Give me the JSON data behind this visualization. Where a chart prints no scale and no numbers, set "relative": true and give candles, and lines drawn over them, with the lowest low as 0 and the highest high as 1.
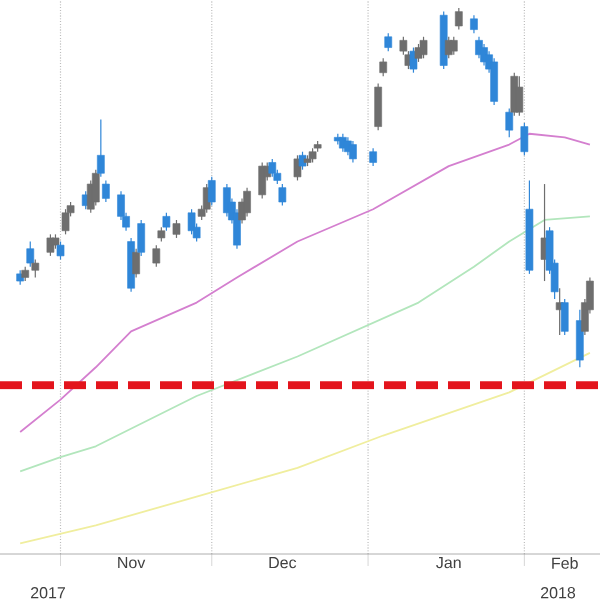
{
  "chart_data": {
    "type": "candlestick",
    "relative": true,
    "grid": true,
    "xlim": [
      "2017-10-20",
      "2018-02-16"
    ],
    "xticks": [
      {
        "value": "2017-11-01",
        "label": null
      },
      {
        "value": "2017-12-01",
        "label": null
      },
      {
        "value": "2018-01-01",
        "label": null
      },
      {
        "value": "2018-02-01",
        "label": null
      },
      {
        "value": "2017-11-15",
        "label": "Nov"
      },
      {
        "value": "2017-12-15",
        "label": "Dec"
      },
      {
        "value": "2018-01-17",
        "label": "Jan"
      },
      {
        "value": "2018-02-09",
        "label": "Feb"
      }
    ],
    "annotations": [
      "2017",
      "2018"
    ],
    "x": [
      "2017-10-24",
      "2017-10-25",
      "2017-10-26",
      "2017-10-27",
      "2017-10-30",
      "2017-10-31",
      "2017-11-01",
      "2017-11-02",
      "2017-11-03",
      "2017-11-06",
      "2017-11-07",
      "2017-11-08",
      "2017-11-09",
      "2017-11-10",
      "2017-11-13",
      "2017-11-14",
      "2017-11-15",
      "2017-11-16",
      "2017-11-17",
      "2017-11-20",
      "2017-11-21",
      "2017-11-22",
      "2017-11-24",
      "2017-11-27",
      "2017-11-28",
      "2017-11-29",
      "2017-11-30",
      "2017-12-01",
      "2017-12-04",
      "2017-12-05",
      "2017-12-06",
      "2017-12-07",
      "2017-12-08",
      "2017-12-11",
      "2017-12-12",
      "2017-12-13",
      "2017-12-14",
      "2017-12-15",
      "2017-12-18",
      "2017-12-19",
      "2017-12-20",
      "2017-12-21",
      "2017-12-22",
      "2017-12-26",
      "2017-12-27",
      "2017-12-28",
      "2017-12-29",
      "2018-01-02",
      "2018-01-03",
      "2018-01-04",
      "2018-01-05",
      "2018-01-08",
      "2018-01-09",
      "2018-01-10",
      "2018-01-11",
      "2018-01-12",
      "2018-01-16",
      "2018-01-17",
      "2018-01-18",
      "2018-01-19",
      "2018-01-22",
      "2018-01-23",
      "2018-01-24",
      "2018-01-25",
      "2018-01-26",
      "2018-01-29",
      "2018-01-30",
      "2018-01-31",
      "2018-02-01",
      "2018-02-02",
      "2018-02-05",
      "2018-02-06",
      "2018-02-07",
      "2018-02-08",
      "2018-02-09",
      "2018-02-12",
      "2018-02-13",
      "2018-02-14"
    ],
    "ohlc": [
      [
        0.26,
        0.27,
        0.23,
        0.24
      ],
      [
        0.25,
        0.28,
        0.24,
        0.27
      ],
      [
        0.33,
        0.35,
        0.28,
        0.29
      ],
      [
        0.27,
        0.3,
        0.25,
        0.29
      ],
      [
        0.32,
        0.37,
        0.31,
        0.36
      ],
      [
        0.34,
        0.37,
        0.33,
        0.36
      ],
      [
        0.34,
        0.35,
        0.3,
        0.31
      ],
      [
        0.38,
        0.44,
        0.37,
        0.43
      ],
      [
        0.43,
        0.46,
        0.42,
        0.45
      ],
      [
        0.48,
        0.49,
        0.44,
        0.45
      ],
      [
        0.44,
        0.52,
        0.43,
        0.51
      ],
      [
        0.46,
        0.55,
        0.45,
        0.54
      ],
      [
        0.59,
        0.69,
        0.53,
        0.54
      ],
      [
        0.51,
        0.52,
        0.46,
        0.47
      ],
      [
        0.48,
        0.49,
        0.41,
        0.42
      ],
      [
        0.42,
        0.43,
        0.38,
        0.39
      ],
      [
        0.35,
        0.36,
        0.21,
        0.22
      ],
      [
        0.26,
        0.33,
        0.25,
        0.32
      ],
      [
        0.4,
        0.41,
        0.31,
        0.32
      ],
      [
        0.29,
        0.34,
        0.28,
        0.33
      ],
      [
        0.36,
        0.39,
        0.35,
        0.38
      ],
      [
        0.42,
        0.43,
        0.38,
        0.39
      ],
      [
        0.37,
        0.41,
        0.36,
        0.4
      ],
      [
        0.43,
        0.44,
        0.37,
        0.38
      ],
      [
        0.39,
        0.4,
        0.35,
        0.36
      ],
      [
        0.42,
        0.45,
        0.41,
        0.44
      ],
      [
        0.44,
        0.51,
        0.43,
        0.5
      ],
      [
        0.52,
        0.53,
        0.45,
        0.46
      ],
      [
        0.5,
        0.51,
        0.42,
        0.43
      ],
      [
        0.46,
        0.47,
        0.4,
        0.41
      ],
      [
        0.43,
        0.44,
        0.33,
        0.34
      ],
      [
        0.41,
        0.47,
        0.4,
        0.46
      ],
      [
        0.43,
        0.5,
        0.42,
        0.49
      ],
      [
        0.48,
        0.57,
        0.47,
        0.56
      ],
      [
        0.53,
        0.57,
        0.52,
        0.56
      ],
      [
        0.57,
        0.58,
        0.53,
        0.54
      ],
      [
        0.54,
        0.55,
        0.51,
        0.52
      ],
      [
        0.5,
        0.51,
        0.45,
        0.46
      ],
      [
        0.53,
        0.59,
        0.52,
        0.58
      ],
      [
        0.59,
        0.6,
        0.55,
        0.56
      ],
      [
        0.57,
        0.59,
        0.56,
        0.58
      ],
      [
        0.58,
        0.61,
        0.57,
        0.6
      ],
      [
        0.61,
        0.63,
        0.6,
        0.62
      ],
      [
        0.64,
        0.65,
        0.62,
        0.63
      ],
      [
        0.64,
        0.65,
        0.6,
        0.61
      ],
      [
        0.63,
        0.64,
        0.59,
        0.6
      ],
      [
        0.62,
        0.63,
        0.57,
        0.58
      ],
      [
        0.6,
        0.61,
        0.56,
        0.57
      ],
      [
        0.67,
        0.79,
        0.66,
        0.78
      ],
      [
        0.82,
        0.86,
        0.81,
        0.85
      ],
      [
        0.92,
        0.93,
        0.88,
        0.89
      ],
      [
        0.88,
        0.92,
        0.87,
        0.91
      ],
      [
        0.84,
        0.88,
        0.83,
        0.87
      ],
      [
        0.88,
        0.89,
        0.82,
        0.83
      ],
      [
        0.86,
        0.9,
        0.85,
        0.89
      ],
      [
        0.87,
        0.92,
        0.86,
        0.91
      ],
      [
        0.98,
        0.99,
        0.83,
        0.84
      ],
      [
        0.87,
        0.92,
        0.86,
        0.91
      ],
      [
        0.88,
        0.92,
        0.87,
        0.91
      ],
      [
        0.95,
        1.0,
        0.94,
        0.99
      ],
      [
        0.97,
        0.98,
        0.93,
        0.94
      ],
      [
        0.91,
        0.92,
        0.86,
        0.87
      ],
      [
        0.89,
        0.9,
        0.84,
        0.85
      ],
      [
        0.87,
        0.88,
        0.82,
        0.83
      ],
      [
        0.85,
        0.86,
        0.73,
        0.74
      ],
      [
        0.71,
        0.72,
        0.64,
        0.66
      ],
      [
        0.71,
        0.82,
        0.7,
        0.81
      ],
      [
        0.71,
        0.81,
        0.7,
        0.78
      ],
      [
        0.67,
        0.68,
        0.59,
        0.6
      ],
      [
        0.44,
        0.52,
        0.26,
        0.27
      ],
      [
        0.3,
        0.51,
        0.24,
        0.36
      ],
      [
        0.38,
        0.39,
        0.26,
        0.27
      ],
      [
        0.29,
        0.3,
        0.19,
        0.21
      ],
      [
        0.16,
        0.22,
        0.09,
        0.18
      ],
      [
        0.18,
        0.19,
        0.09,
        0.1
      ],
      [
        0.13,
        0.16,
        0.0,
        0.02
      ],
      [
        0.1,
        0.19,
        0.09,
        0.18
      ],
      [
        0.16,
        0.25,
        0.15,
        0.24
      ]
    ],
    "colors": [
      "#2f86d8",
      "#6e6e6e",
      "#2f86d8",
      "#6e6e6e",
      "#6e6e6e",
      "#6e6e6e",
      "#2f86d8",
      "#6e6e6e",
      "#6e6e6e",
      "#2f86d8",
      "#6e6e6e",
      "#6e6e6e",
      "#2f86d8",
      "#2f86d8",
      "#2f86d8",
      "#2f86d8",
      "#2f86d8",
      "#6e6e6e",
      "#2f86d8",
      "#6e6e6e",
      "#6e6e6e",
      "#2f86d8",
      "#6e6e6e",
      "#2f86d8",
      "#2f86d8",
      "#6e6e6e",
      "#6e6e6e",
      "#2f86d8",
      "#2f86d8",
      "#2f86d8",
      "#2f86d8",
      "#6e6e6e",
      "#6e6e6e",
      "#6e6e6e",
      "#6e6e6e",
      "#2f86d8",
      "#2f86d8",
      "#2f86d8",
      "#6e6e6e",
      "#2f86d8",
      "#6e6e6e",
      "#6e6e6e",
      "#6e6e6e",
      "#2f86d8",
      "#2f86d8",
      "#2f86d8",
      "#2f86d8",
      "#2f86d8",
      "#6e6e6e",
      "#6e6e6e",
      "#2f86d8",
      "#6e6e6e",
      "#6e6e6e",
      "#2f86d8",
      "#6e6e6e",
      "#6e6e6e",
      "#2f86d8",
      "#6e6e6e",
      "#6e6e6e",
      "#6e6e6e",
      "#2f86d8",
      "#2f86d8",
      "#2f86d8",
      "#2f86d8",
      "#2f86d8",
      "#2f86d8",
      "#6e6e6e",
      "#6e6e6e",
      "#2f86d8",
      "#2f86d8",
      "#6e6e6e",
      "#2f86d8",
      "#2f86d8",
      "#6e6e6e",
      "#2f86d8",
      "#2f86d8",
      "#6e6e6e",
      "#6e6e6e"
    ],
    "series": [
      {
        "type": "line",
        "color": "#d47fcf",
        "x": [
          "2017-10-24",
          "2017-11-01",
          "2017-11-08",
          "2017-11-15",
          "2017-11-28",
          "2017-12-06",
          "2017-12-18",
          "2018-01-02",
          "2018-01-17",
          "2018-01-29",
          "2018-02-02",
          "2018-02-09",
          "2018-02-14"
        ],
        "values": [
          -0.18,
          -0.09,
          0,
          0.1,
          0.18,
          0.25,
          0.35,
          0.44,
          0.56,
          0.62,
          0.65,
          0.64,
          0.62
        ]
      },
      {
        "type": "line",
        "color": "#b2e6bc",
        "x": [
          "2017-10-24",
          "2017-11-01",
          "2017-11-08",
          "2017-11-28",
          "2017-12-18",
          "2018-01-11",
          "2018-01-22",
          "2018-01-29",
          "2018-02-05",
          "2018-02-14"
        ],
        "values": [
          -0.29,
          -0.25,
          -0.22,
          -0.08,
          0.03,
          0.18,
          0.28,
          0.35,
          0.41,
          0.42
        ]
      },
      {
        "type": "line",
        "color": "#f0ee9e",
        "x": [
          "2017-10-24",
          "2017-11-08",
          "2017-11-28",
          "2017-12-18",
          "2018-01-04",
          "2018-01-29",
          "2018-02-14"
        ],
        "values": [
          -0.49,
          -0.44,
          -0.36,
          -0.28,
          -0.19,
          -0.07,
          0.04
        ]
      }
    ],
    "ref_lines": [
      {
        "axis": "y",
        "value": -0.05,
        "color": "#e3141c",
        "line_style": "dashed"
      }
    ]
  }
}
